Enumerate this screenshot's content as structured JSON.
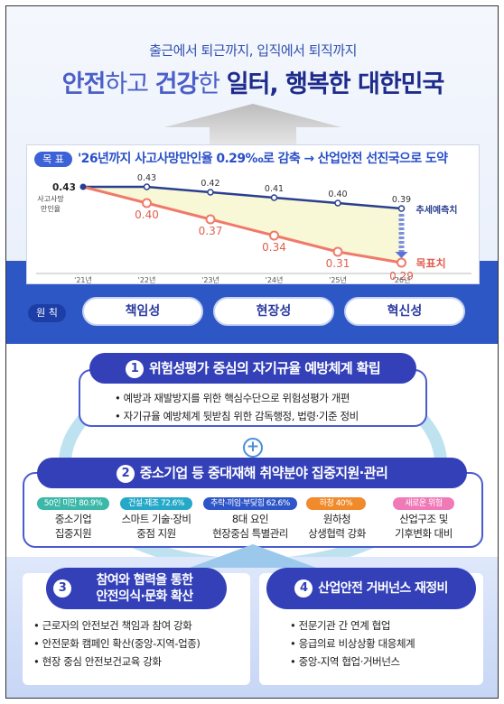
{
  "header": {
    "subtitle": "출근에서 퇴근까지, 입직에서 퇴직까지",
    "title_parts": [
      "안전",
      "하고 ",
      "건강",
      "한 ",
      "일터, 행복한 대한민국"
    ]
  },
  "goal": {
    "badge": "목 표",
    "text": "'26년까지 사고사망만인율 0.29‰로 감축 → 산업안전 선진국으로 도약"
  },
  "chart_data": {
    "type": "line",
    "categories": [
      "'21년",
      "'22년",
      "'23년",
      "'24년",
      "'25년",
      "'26년"
    ],
    "series": [
      {
        "name": "추세예측치",
        "values": [
          0.43,
          0.43,
          0.42,
          0.41,
          0.4,
          0.39
        ],
        "color": "#2b3f8f"
      },
      {
        "name": "목표치",
        "values": [
          0.43,
          0.4,
          0.37,
          0.34,
          0.31,
          0.29
        ],
        "color": "#f07a6a"
      }
    ],
    "start_label": "0.43",
    "ylabel": "사고사망\n만인율",
    "ylim": [
      0.28,
      0.45
    ]
  },
  "principles": {
    "badge": "원 칙",
    "items": [
      "책임성",
      "현장성",
      "혁신성"
    ]
  },
  "section1": {
    "num": "1",
    "title": "위험성평가 중심의 자기규율 예방체계 확립",
    "bullets": [
      "예방과 재발방지를 위한 핵심수단으로 위험성평가 개편",
      "자기규율 예방체계 뒷받침 위한 감독행정, 법령·기준 정비"
    ]
  },
  "plus": "+",
  "section2": {
    "num": "2",
    "title": "중소기업 등 중대재해 취약분야 집중지원·관리",
    "columns": [
      {
        "tag": "50인 미만 80.9%",
        "color": "#3bb8a8",
        "lines": [
          "중소기업",
          "집중지원"
        ]
      },
      {
        "tag": "건설·제조 72.6%",
        "color": "#26a9c8",
        "lines": [
          "스마트 기술·장비",
          "중점 지원"
        ]
      },
      {
        "tag": "추락·끼임·부딪힘 62.6%",
        "color": "#2f56c8",
        "lines": [
          "8대 요인",
          "현장중심 특별관리"
        ]
      },
      {
        "tag": "하청 40%",
        "color": "#f08a2a",
        "lines": [
          "원하청",
          "상생협력 강화"
        ]
      },
      {
        "tag": "새로운 위험",
        "color": "#f07ab8",
        "lines": [
          "산업구조 및",
          "기후변화 대비"
        ]
      }
    ]
  },
  "section3": {
    "num": "3",
    "title_lines": [
      "참여와 협력을 통한",
      "안전의식·문화 확산"
    ],
    "bullets": [
      "근로자의 안전보건 책임과 참여 강화",
      "안전문화 캠페인 확산(중앙-지역-업종)",
      "현장 중심 안전보건교육 강화"
    ]
  },
  "section4": {
    "num": "4",
    "title": "산업안전 거버넌스 재정비",
    "bullets": [
      "전문기관 간 연계 협업",
      "응급의료 비상상황 대응체계",
      "중앙-지역 협업·거버넌스"
    ]
  }
}
